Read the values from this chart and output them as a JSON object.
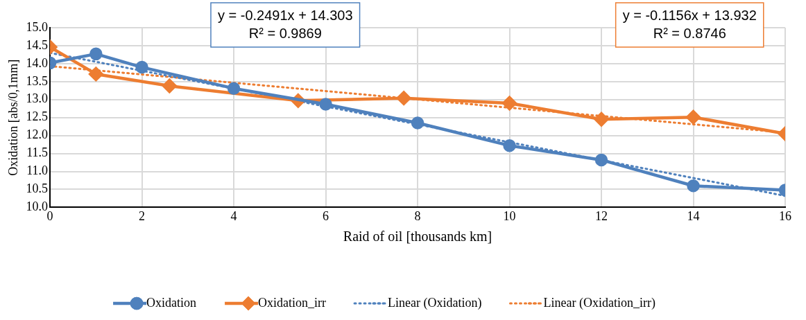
{
  "chart_data": {
    "type": "line",
    "xlabel": "Raid of oil [thousands km]",
    "ylabel": "Oxidation [abs/0,1mm]",
    "xlim": [
      0,
      16
    ],
    "xticks": [
      0,
      2,
      4,
      6,
      8,
      10,
      12,
      14,
      16
    ],
    "ylim": [
      10,
      15
    ],
    "yticks": [
      {
        "value": 10,
        "label": "10.0"
      },
      {
        "value": 10.5,
        "label": "10.5"
      },
      {
        "value": 11,
        "label": "11.0"
      },
      {
        "value": 11.5,
        "label": "11.5"
      },
      {
        "value": 12,
        "label": "12.0"
      },
      {
        "value": 12.5,
        "label": "12.5"
      },
      {
        "value": 13,
        "label": "13.0"
      },
      {
        "value": 13.5,
        "label": "13.5"
      },
      {
        "value": 14,
        "label": "14.0"
      },
      {
        "value": 14.5,
        "label": "14.5"
      },
      {
        "value": 15,
        "label": "15.0"
      }
    ],
    "grid": true,
    "legend": "bottom",
    "series": [
      {
        "name": "Oxidation",
        "color": "#4f81bd",
        "marker": "circle",
        "line_style": "solid",
        "x": [
          0,
          1,
          2,
          4,
          6,
          8,
          10,
          12,
          14,
          16
        ],
        "values": [
          14.02,
          14.27,
          13.9,
          13.31,
          12.87,
          12.35,
          11.72,
          11.32,
          10.6,
          10.48
        ]
      },
      {
        "name": "Oxidation_irr",
        "color": "#ed7d31",
        "marker": "diamond",
        "line_style": "solid",
        "x": [
          0,
          1,
          2.6,
          5.4,
          7.7,
          10,
          12,
          14,
          16
        ],
        "values": [
          14.46,
          13.71,
          13.38,
          12.97,
          13.04,
          12.9,
          12.45,
          12.51,
          12.05
        ]
      },
      {
        "name": "Linear (Oxidation)",
        "color": "#4f81bd",
        "marker": "none",
        "line_style": "dotted",
        "x": [
          0,
          16
        ],
        "values": [
          14.3,
          10.32
        ]
      },
      {
        "name": "Linear (Oxidation_irr)",
        "color": "#ed7d31",
        "marker": "none",
        "line_style": "dotted",
        "x": [
          0,
          16
        ],
        "values": [
          13.93,
          12.08
        ]
      }
    ],
    "annotations": [
      "y = -0.2491x + 14.303\nR² = 0.9869",
      "y = -0.1156x + 13.932\nR² = 0.8746"
    ]
  }
}
